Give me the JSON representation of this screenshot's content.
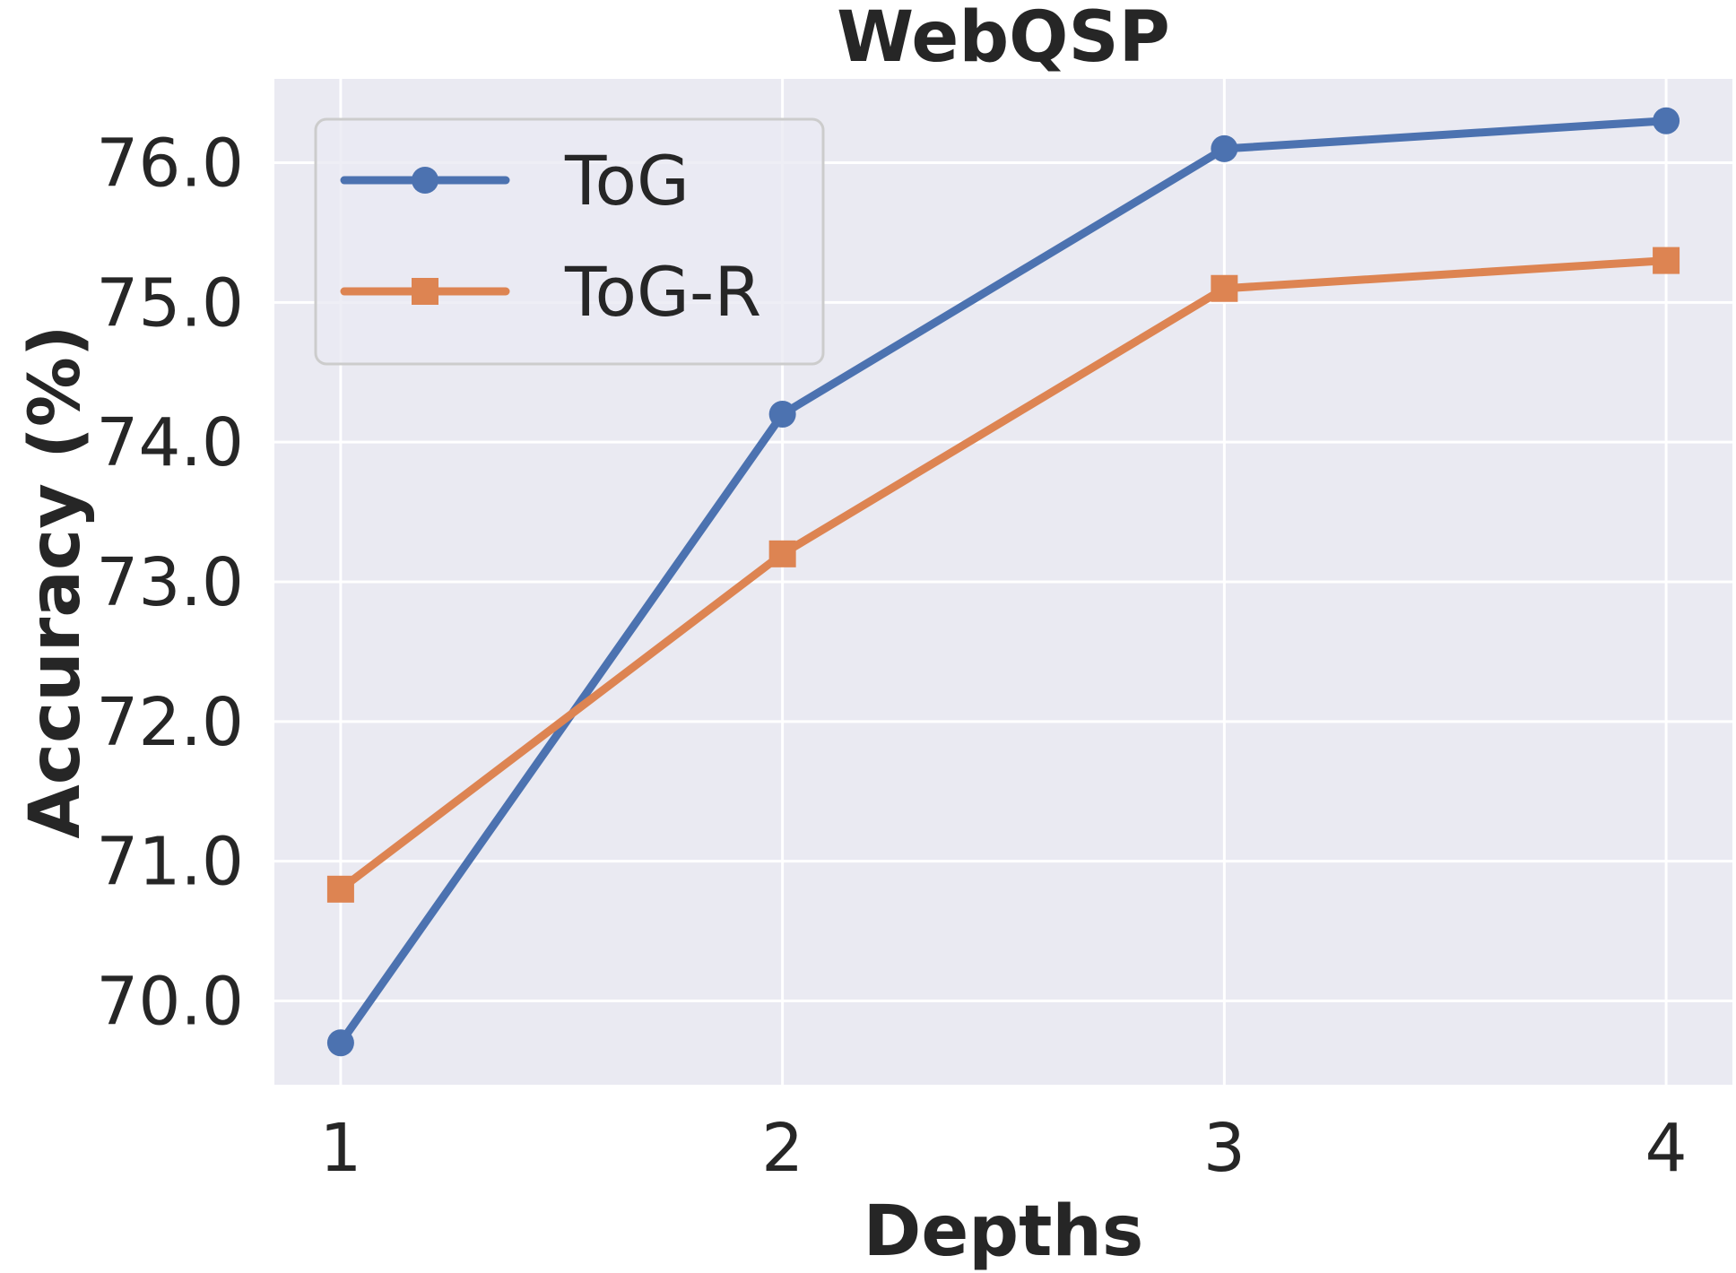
{
  "chart_data": {
    "type": "line",
    "title": "WebQSP",
    "xlabel": "Depths",
    "ylabel": "Accuracy (%)",
    "x": [
      1,
      2,
      3,
      4
    ],
    "x_tick_labels": [
      "1",
      "2",
      "3",
      "4"
    ],
    "y_ticks": [
      70.0,
      71.0,
      72.0,
      73.0,
      74.0,
      75.0,
      76.0
    ],
    "y_tick_labels": [
      "70.0",
      "71.0",
      "72.0",
      "73.0",
      "74.0",
      "75.0",
      "76.0"
    ],
    "ylim": [
      69.4,
      76.6
    ],
    "xlim": [
      0.85,
      4.15
    ],
    "grid": true,
    "legend_position": "top-left",
    "series": [
      {
        "name": "ToG",
        "values": [
          69.7,
          74.2,
          76.1,
          76.3
        ],
        "color": "#4c72b0",
        "marker": "circle"
      },
      {
        "name": "ToG-R",
        "values": [
          70.8,
          73.2,
          75.1,
          75.3
        ],
        "color": "#dd8452",
        "marker": "square"
      }
    ],
    "background_color": "#eaeaf2",
    "grid_color": "#ffffff"
  }
}
